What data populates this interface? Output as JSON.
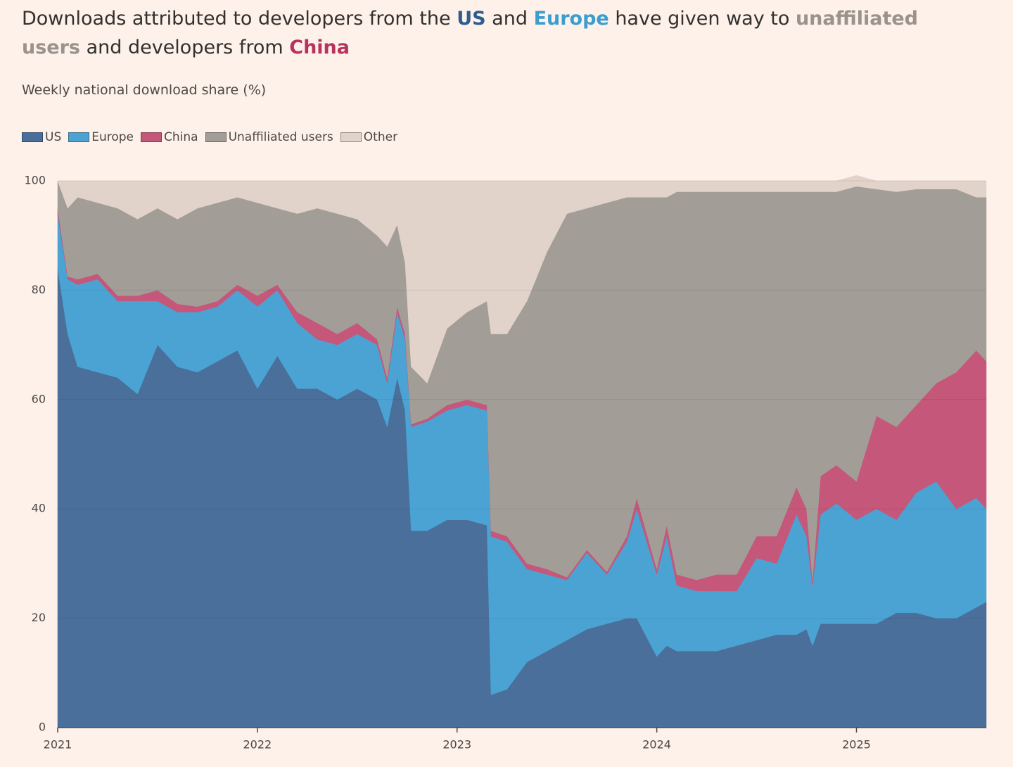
{
  "chart_data": {
    "type": "stacked_area",
    "title": [
      {
        "text": "Downloads attributed to developers from the "
      },
      {
        "text": "US",
        "color": "#2f5c8f"
      },
      {
        "text": " and "
      },
      {
        "text": "Europe",
        "color": "#3b9dd0"
      },
      {
        "text": " have given way to "
      },
      {
        "text": "unaffiliated users",
        "color": "#9a928c"
      },
      {
        "text": " and developers from "
      },
      {
        "text": "China",
        "color": "#b8325f"
      }
    ],
    "subtitle": "Weekly national download share (%)",
    "x": [
      2021.0,
      2021.05,
      2021.1,
      2021.2,
      2021.3,
      2021.4,
      2021.5,
      2021.6,
      2021.7,
      2021.8,
      2021.9,
      2022.0,
      2022.1,
      2022.2,
      2022.3,
      2022.4,
      2022.5,
      2022.6,
      2022.65,
      2022.7,
      2022.74,
      2022.77,
      2022.85,
      2022.95,
      2023.05,
      2023.15,
      2023.17,
      2023.25,
      2023.35,
      2023.45,
      2023.55,
      2023.65,
      2023.75,
      2023.85,
      2023.9,
      2024.0,
      2024.05,
      2024.1,
      2024.2,
      2024.3,
      2024.4,
      2024.5,
      2024.6,
      2024.7,
      2024.75,
      2024.78,
      2024.82,
      2024.9,
      2025.0,
      2025.1,
      2025.2,
      2025.3,
      2025.4,
      2025.5,
      2025.6,
      2025.65
    ],
    "series": [
      {
        "name": "US",
        "color": "#4a6f9b",
        "values": [
          84,
          72,
          66,
          65,
          64,
          61,
          70,
          66,
          65,
          67,
          69,
          62,
          68,
          62,
          62,
          60,
          62,
          60,
          55,
          64,
          58,
          36,
          36,
          38,
          38,
          37,
          6,
          7,
          12,
          14,
          16,
          18,
          19,
          20,
          20,
          13,
          15,
          14,
          14,
          14,
          15,
          16,
          17,
          17,
          18,
          15,
          19,
          19,
          19,
          19,
          21,
          21,
          20,
          20,
          22,
          23
        ]
      },
      {
        "name": "Europe",
        "color": "#4ba3d3",
        "values": [
          10,
          10,
          15,
          17,
          14,
          17,
          8,
          10,
          11,
          10,
          11,
          15,
          12,
          12,
          9,
          10,
          10,
          10,
          8,
          12,
          13,
          19,
          20,
          20,
          21,
          21,
          29,
          27,
          17,
          14,
          11,
          14,
          9,
          14,
          20,
          15,
          20,
          12,
          11,
          11,
          10,
          15,
          13,
          22,
          17,
          11,
          20,
          22,
          19,
          21,
          17,
          22,
          25,
          20,
          20,
          17
        ]
      },
      {
        "name": "China",
        "color": "#c4577a",
        "values": [
          1,
          0.5,
          1,
          1,
          1,
          1,
          2,
          1.5,
          1,
          1,
          1,
          2,
          1,
          2,
          3,
          2,
          2,
          1,
          1,
          1,
          1,
          0.5,
          0.5,
          1,
          1,
          1,
          1,
          1,
          1,
          1,
          0.5,
          0.5,
          0.5,
          1,
          2,
          1,
          2,
          2,
          2,
          3,
          3,
          4,
          5,
          5,
          5,
          1,
          7,
          7,
          7,
          17,
          17,
          16,
          18,
          25,
          27,
          27
        ]
      },
      {
        "name": "Unaffiliated users",
        "color": "#a39d98",
        "values": [
          5,
          12.5,
          15,
          13,
          16,
          14,
          15,
          15.5,
          18,
          18,
          16,
          17,
          14,
          18,
          21,
          22,
          19,
          19,
          24,
          15,
          13,
          10.5,
          6.5,
          14,
          16,
          19,
          36,
          37,
          48,
          58,
          66.5,
          62.5,
          67.5,
          62,
          55,
          68,
          60,
          70,
          71,
          70,
          70,
          63,
          63,
          54,
          58,
          71,
          52,
          50,
          54,
          41.5,
          43,
          39.5,
          35.5,
          33.5,
          28,
          30
        ]
      },
      {
        "name": "Other",
        "color": "#e2d3ca",
        "values": [
          0,
          5,
          3,
          4,
          5,
          7,
          5,
          7,
          5,
          4,
          3,
          4,
          5,
          6,
          5,
          6,
          7,
          10,
          12,
          8,
          15,
          34,
          37,
          27,
          24,
          22,
          28,
          28,
          22,
          13,
          6,
          5,
          4,
          3,
          3,
          3,
          3,
          2,
          2,
          2,
          2,
          2,
          2,
          2,
          2,
          2,
          2,
          2,
          2,
          1.5,
          2,
          1.5,
          1.5,
          1.5,
          3,
          3
        ]
      }
    ],
    "xlim": [
      2021,
      2025.65
    ],
    "xticks": [
      2021,
      2022,
      2023,
      2024,
      2025
    ],
    "ylim": [
      0,
      100
    ],
    "yticks": [
      0,
      20,
      40,
      60,
      80,
      100
    ],
    "grid": true,
    "legend": "top-left"
  }
}
